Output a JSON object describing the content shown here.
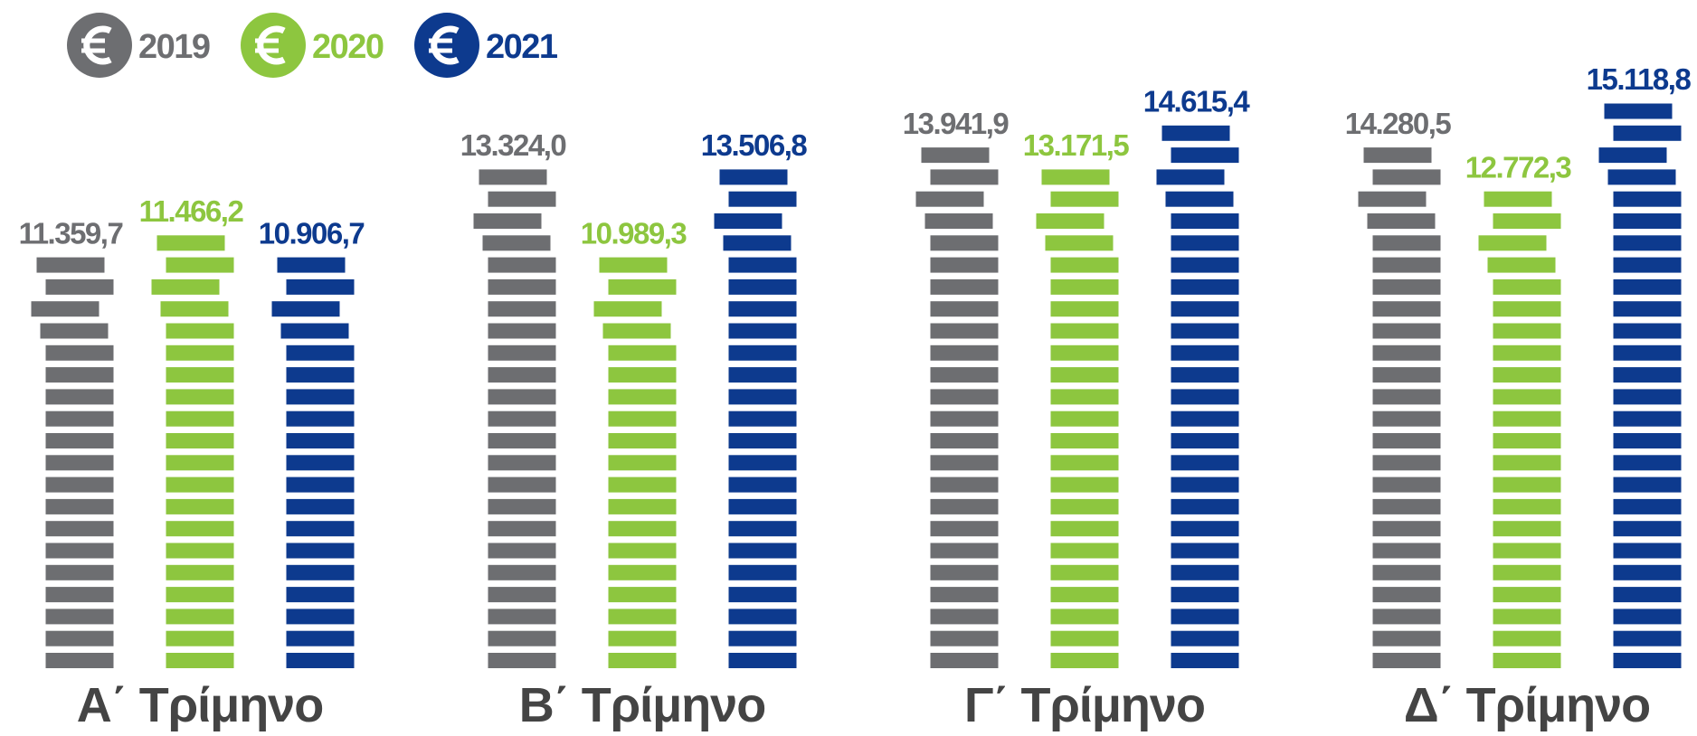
{
  "chart_data": {
    "type": "coin_stack_bar",
    "categories": [
      "Α΄ Τρίμηνο",
      "Β΄ Τρίμηνο",
      "Γ΄ Τρίμηνο",
      "Δ΄ Τρίμηνο"
    ],
    "series": [
      {
        "name": "2019",
        "color": "#6d6e71",
        "values": [
          11359.7,
          13324.0,
          13941.9,
          14280.5
        ],
        "value_labels": [
          "11.359,7",
          "13.324,0",
          "13.941,9",
          "14.280,5"
        ]
      },
      {
        "name": "2020",
        "color": "#8dc63f",
        "values": [
          11466.2,
          10989.3,
          13171.5,
          12772.3
        ],
        "value_labels": [
          "11.466,2",
          "10.989,3",
          "13.171,5",
          "12.772,3"
        ]
      },
      {
        "name": "2021",
        "color": "#0d3a8e",
        "values": [
          10906.7,
          13506.8,
          14615.4,
          15118.8
        ],
        "value_labels": [
          "10.906,7",
          "13.506,8",
          "14.615,4",
          "15.118,8"
        ]
      }
    ],
    "legend": "top-left"
  }
}
